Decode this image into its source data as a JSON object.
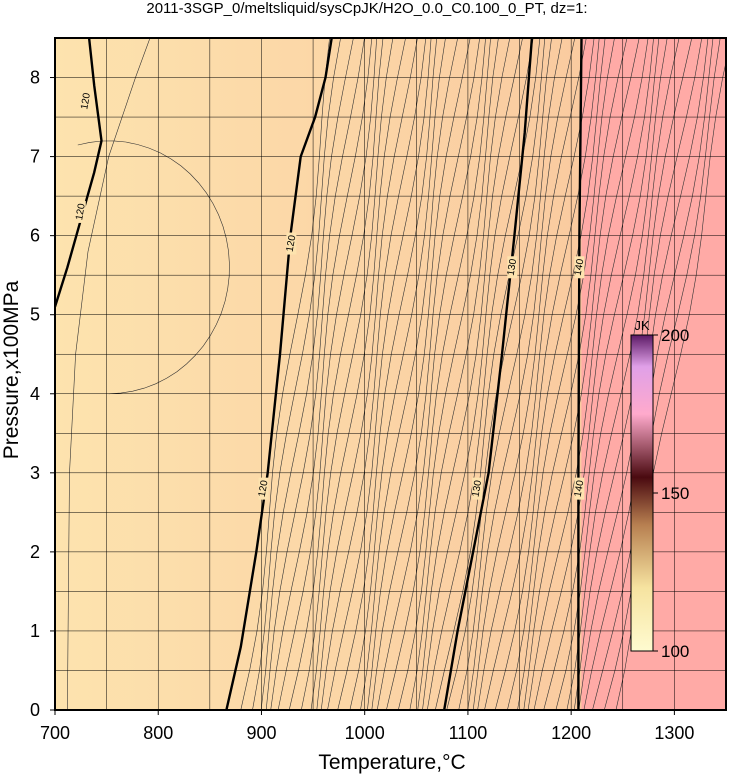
{
  "chart_data": {
    "type": "heatmap",
    "title": "2011-3SGP_0/meltsliquid/sysCpJK/H2O_0.0_C0.100_0_PT, dz=1:",
    "xlabel": "Temperature,°C",
    "ylabel": "Pressure,x100MPa",
    "xlim": [
      700,
      1350
    ],
    "ylim": [
      0,
      8.5
    ],
    "x_ticks": [
      "700",
      "800",
      "900",
      "1000",
      "1100",
      "1200",
      "1300"
    ],
    "y_ticks": [
      "0",
      "1",
      "2",
      "3",
      "4",
      "5",
      "6",
      "7",
      "8"
    ],
    "grid": true,
    "colorbar": {
      "label": "JK",
      "min": 100,
      "max": 200,
      "ticks": [
        "100",
        "150",
        "200"
      ],
      "placement": "right-inside"
    },
    "saturated_region": {
      "x_from": 1210,
      "color": "#ffaaa6"
    },
    "background_colors": {
      "low": "#fde3ae",
      "high": "#f9c49c"
    },
    "major_contours": [
      {
        "label": "120",
        "points": [
          [
            866,
            0
          ],
          [
            880,
            0.8
          ],
          [
            895,
            2.0
          ],
          [
            906,
            3.0
          ],
          [
            918,
            4.5
          ],
          [
            928,
            6.0
          ],
          [
            938,
            7.0
          ],
          [
            952,
            7.5
          ],
          [
            962,
            8.0
          ],
          [
            968,
            8.5
          ]
        ],
        "label_at": [
          [
            902,
            2.8
          ],
          [
            929,
            5.9
          ]
        ]
      },
      {
        "label": "120",
        "points": [
          [
            700,
            5.1
          ],
          [
            712,
            5.6
          ],
          [
            725,
            6.2
          ],
          [
            738,
            6.8
          ],
          [
            745,
            7.2
          ],
          [
            738,
            7.9
          ],
          [
            733,
            8.5
          ]
        ],
        "label_at": [
          [
            725,
            6.3
          ],
          [
            730,
            7.7
          ]
        ]
      },
      {
        "label": "130",
        "points": [
          [
            1077,
            0
          ],
          [
            1090,
            1.0
          ],
          [
            1105,
            2.0
          ],
          [
            1120,
            3.0
          ],
          [
            1133,
            4.5
          ],
          [
            1145,
            6.0
          ],
          [
            1155,
            7.3
          ],
          [
            1162,
            8.5
          ]
        ],
        "label_at": [
          [
            1109,
            2.8
          ],
          [
            1143,
            5.6
          ]
        ]
      },
      {
        "label": "140",
        "points": [
          [
            1207,
            0
          ],
          [
            1207,
            3.0
          ],
          [
            1208,
            6.0
          ],
          [
            1210,
            8.5
          ]
        ],
        "label_at": [
          [
            1208,
            2.8
          ],
          [
            1208,
            5.6
          ]
        ]
      }
    ]
  }
}
